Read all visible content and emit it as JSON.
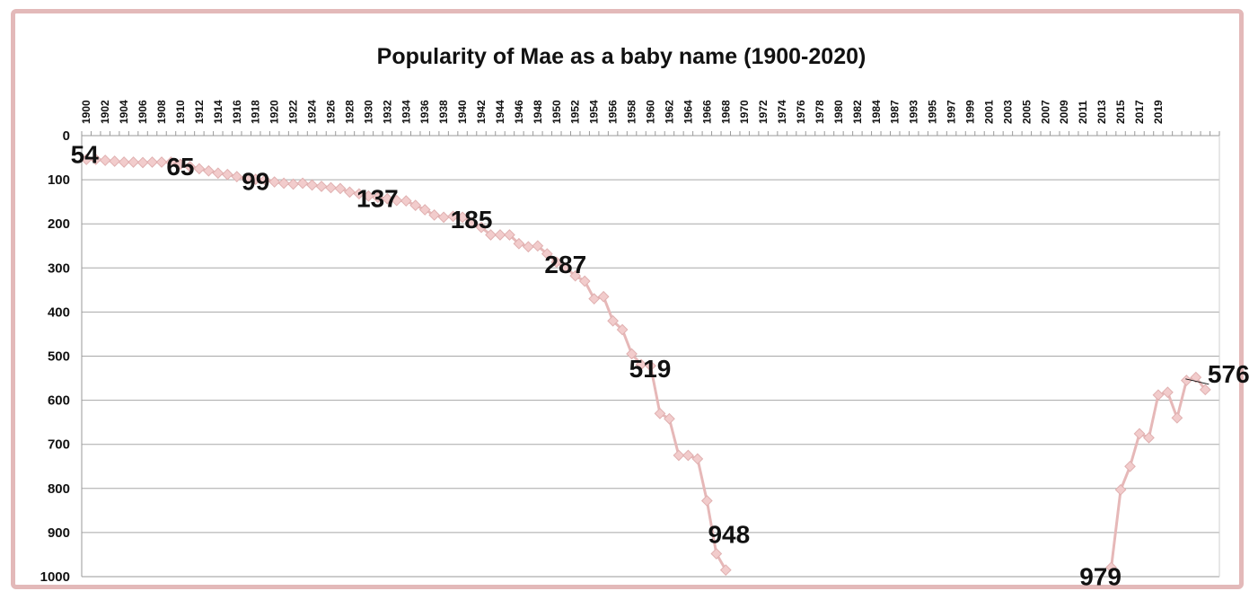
{
  "chart_data": {
    "type": "line",
    "title": "Popularity of Mae as a baby name (1900-2020)",
    "xlabel": "",
    "ylabel": "",
    "y_axis_reversed": true,
    "ylim": [
      0,
      1000
    ],
    "y_ticks": [
      "0",
      "100",
      "200",
      "300",
      "400",
      "500",
      "600",
      "700",
      "800",
      "900",
      "1000"
    ],
    "x_tick_labels": [
      "1900",
      "1902",
      "1904",
      "1906",
      "1908",
      "1910",
      "1912",
      "1914",
      "1916",
      "1918",
      "1920",
      "1922",
      "1924",
      "1926",
      "1928",
      "1930",
      "1932",
      "1934",
      "1936",
      "1938",
      "1940",
      "1942",
      "1944",
      "1946",
      "1948",
      "1950",
      "1952",
      "1954",
      "1956",
      "1958",
      "1960",
      "1962",
      "1964",
      "1966",
      "1968",
      "1970",
      "1972",
      "1974",
      "1976",
      "1978",
      "1980",
      "1982",
      "1984",
      "1987",
      "1993",
      "1995",
      "1997",
      "1999",
      "2001",
      "2003",
      "2005",
      "2007",
      "2009",
      "2011",
      "2013",
      "2015",
      "2017",
      "2019"
    ],
    "grid": true,
    "line_color": "#e6b8b8",
    "marker_color": "#f2cccc",
    "series": [
      {
        "values": [
          [
            0,
            54
          ],
          [
            1,
            54
          ],
          [
            2,
            56
          ],
          [
            3,
            58
          ],
          [
            4,
            60
          ],
          [
            5,
            60
          ],
          [
            6,
            61
          ],
          [
            7,
            60
          ],
          [
            8,
            60
          ],
          [
            9,
            60
          ],
          [
            10,
            65
          ],
          [
            11,
            70
          ],
          [
            12,
            75
          ],
          [
            13,
            80
          ],
          [
            14,
            85
          ],
          [
            15,
            88
          ],
          [
            16,
            93
          ],
          [
            17,
            97
          ],
          [
            18,
            99
          ],
          [
            19,
            100
          ],
          [
            20,
            105
          ],
          [
            21,
            108
          ],
          [
            22,
            110
          ],
          [
            23,
            108
          ],
          [
            24,
            112
          ],
          [
            25,
            115
          ],
          [
            26,
            118
          ],
          [
            27,
            120
          ],
          [
            28,
            128
          ],
          [
            29,
            132
          ],
          [
            30,
            137
          ],
          [
            31,
            140
          ],
          [
            32,
            143
          ],
          [
            33,
            147
          ],
          [
            34,
            148
          ],
          [
            35,
            158
          ],
          [
            36,
            168
          ],
          [
            37,
            180
          ],
          [
            38,
            185
          ],
          [
            39,
            183
          ],
          [
            40,
            185
          ],
          [
            41,
            197
          ],
          [
            42,
            208
          ],
          [
            43,
            225
          ],
          [
            44,
            225
          ],
          [
            45,
            225
          ],
          [
            46,
            245
          ],
          [
            47,
            252
          ],
          [
            48,
            250
          ],
          [
            49,
            268
          ],
          [
            50,
            287
          ],
          [
            51,
            300
          ],
          [
            52,
            318
          ],
          [
            53,
            330
          ],
          [
            54,
            370
          ],
          [
            55,
            365
          ],
          [
            56,
            420
          ],
          [
            57,
            440
          ],
          [
            58,
            495
          ],
          [
            59,
            519
          ],
          [
            60,
            522
          ],
          [
            61,
            630
          ],
          [
            62,
            642
          ],
          [
            63,
            725
          ],
          [
            64,
            725
          ],
          [
            65,
            733
          ],
          [
            66,
            828
          ],
          [
            67,
            948
          ],
          [
            68,
            985
          ],
          [
            109,
            979
          ],
          [
            110,
            803
          ],
          [
            111,
            750
          ],
          [
            112,
            676
          ],
          [
            113,
            685
          ],
          [
            114,
            588
          ],
          [
            115,
            582
          ],
          [
            116,
            640
          ],
          [
            117,
            555
          ],
          [
            118,
            548
          ],
          [
            119,
            576
          ]
        ]
      }
    ],
    "data_labels": [
      {
        "index": 0,
        "text": "54"
      },
      {
        "index": 10,
        "text": "65"
      },
      {
        "index": 18,
        "text": "99"
      },
      {
        "index": 30,
        "text": "137"
      },
      {
        "index": 40,
        "text": "185"
      },
      {
        "index": 50,
        "text": "287"
      },
      {
        "index": 59,
        "text": "519"
      },
      {
        "index": 67,
        "text": "948"
      },
      {
        "index": 109,
        "text": "979"
      },
      {
        "index": 119,
        "text": "576"
      }
    ]
  }
}
